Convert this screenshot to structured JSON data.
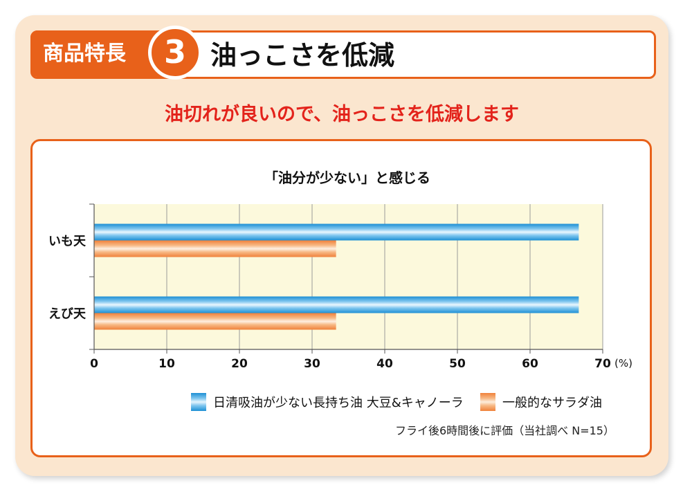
{
  "header": {
    "tag_label": "商品特長",
    "number": "3",
    "title": "油っこさを低減"
  },
  "subtitle": "油切れが良いので、油っこさを低減します",
  "chart_data": {
    "type": "bar",
    "orientation": "horizontal",
    "title": "「油分が少ない」と感じる",
    "categories": [
      "いも天",
      "えび天"
    ],
    "series": [
      {
        "name": "日清吸油が少ない長持ち油 大豆&キャノーラ",
        "values": [
          66.7,
          66.7
        ],
        "color": "#1d8fd4"
      },
      {
        "name": "一般的なサラダ油",
        "values": [
          33.3,
          33.3
        ],
        "color": "#f0813a"
      }
    ],
    "xlim": [
      0,
      70
    ],
    "xticks": [
      "0",
      "10",
      "20",
      "30",
      "40",
      "50",
      "60",
      "70"
    ],
    "xunit": "(%)",
    "grid": true,
    "legend_position": "bottom",
    "plot_background": "#fcf9dc"
  },
  "footnote": "フライ後6時間後に評価（当社調べ N=15）",
  "colors": {
    "accent_orange": "#e8611a",
    "subtitle_red": "#e3231b",
    "outer_background": "#fbe6cf"
  }
}
